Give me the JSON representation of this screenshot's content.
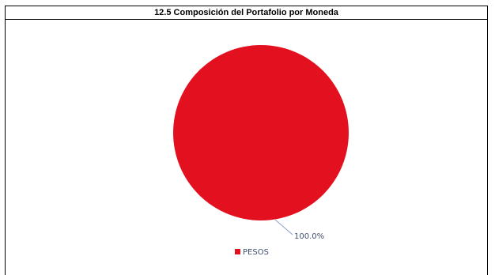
{
  "chart_data": {
    "type": "pie",
    "title": "12.5 Composición del Portafolio por Moneda",
    "slices": [
      {
        "label": "PESOS",
        "value": 100.0,
        "display": "100.0%",
        "color": "#e3101f"
      }
    ],
    "legend": {
      "position": "bottom",
      "entries": [
        "PESOS"
      ]
    }
  }
}
